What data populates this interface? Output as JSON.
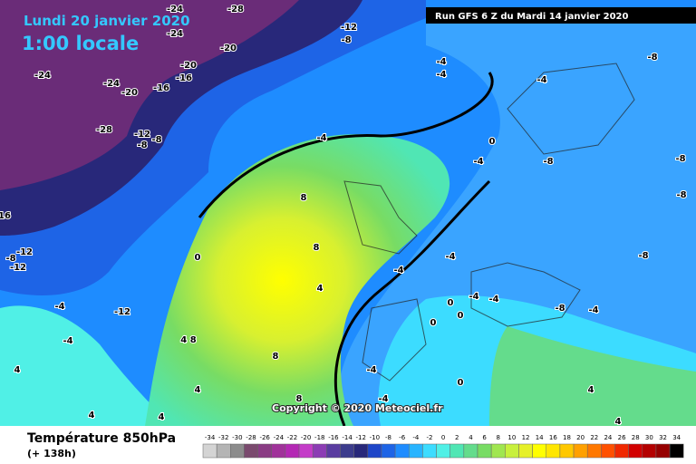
{
  "header": {
    "date": "Lundi 20 janvier 2020",
    "time": "1:00 locale",
    "run": "Run GFS 6 Z du Mardi 14 janvier 2020"
  },
  "footer": {
    "title": "Température 850hPa",
    "lead": "(+ 138h)",
    "copyright": "Copyright © 2020 Meteociel.fr"
  },
  "legend": {
    "values": [
      -34,
      -32,
      -30,
      -28,
      -26,
      -24,
      -22,
      -20,
      -18,
      -16,
      -14,
      -12,
      -10,
      -8,
      -6,
      -4,
      -2,
      0,
      2,
      4,
      6,
      8,
      10,
      12,
      14,
      16,
      18,
      20,
      22,
      24,
      26,
      28,
      30,
      32,
      34
    ],
    "colors": [
      "#d4d4d4",
      "#b4b4b4",
      "#8c8c8c",
      "#7a4a6e",
      "#8a3c84",
      "#a0329a",
      "#b428b4",
      "#c43cc8",
      "#8c3cb4",
      "#5a3ca0",
      "#3c3c8c",
      "#28287a",
      "#1e46c8",
      "#1e64e6",
      "#1e8cff",
      "#28b4ff",
      "#3cdcff",
      "#50f0e6",
      "#50e6b4",
      "#64dc8c",
      "#78dc64",
      "#a0e650",
      "#c8f03c",
      "#e6f028",
      "#ffff00",
      "#ffe600",
      "#ffc800",
      "#ffa000",
      "#ff7800",
      "#ff5000",
      "#f02800",
      "#d20000",
      "#b40000",
      "#960000",
      "#000000"
    ]
  },
  "map": {
    "labels": [
      "-24",
      "-28",
      "-12",
      "-8",
      "-24",
      "-20",
      "-20",
      "-16",
      "-24",
      "-24",
      "-20",
      "-16",
      "-28",
      "-12",
      "-8",
      "-8",
      "-4",
      "-4",
      "-4",
      "-8",
      "-4",
      "0",
      "-4",
      "-8",
      "-8",
      "-8",
      "16",
      "-12",
      "-8",
      "-12",
      "0",
      "8",
      "8",
      "4",
      "-4",
      "-12",
      "-4",
      "4 8",
      "4",
      "4",
      "8",
      "4",
      "8",
      "4",
      "-4",
      "-4",
      "-8",
      "-4",
      "0",
      "0",
      "-4",
      "0",
      "-8",
      "-4",
      "-4",
      "-4",
      "0",
      "4",
      "4"
    ]
  }
}
